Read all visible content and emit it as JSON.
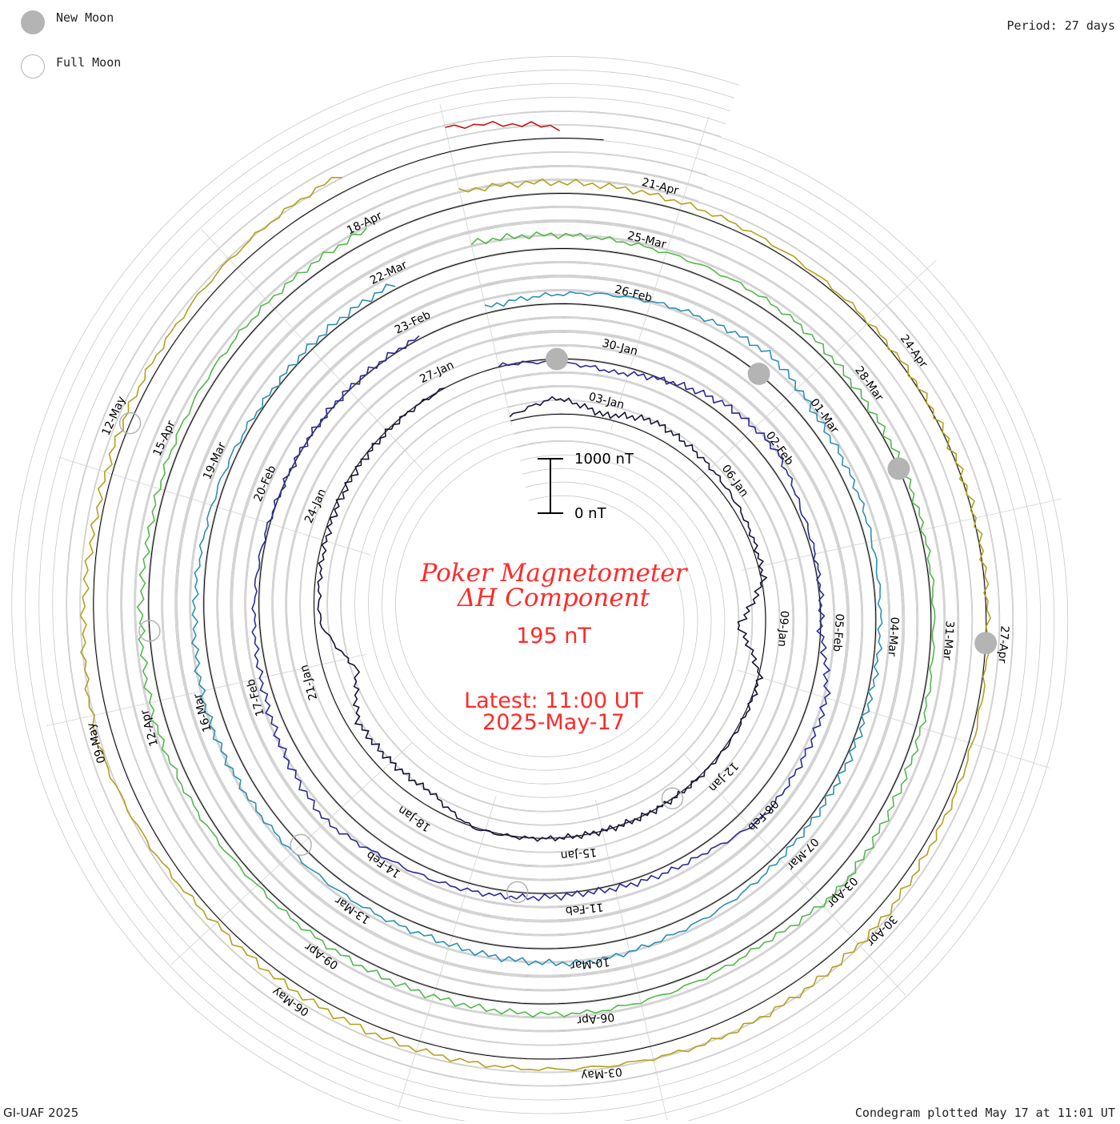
{
  "legend": {
    "new_moon": "New Moon",
    "full_moon": "Full Moon"
  },
  "header": {
    "period": "Period: 27 days"
  },
  "footer": {
    "credit": "GI-UAF 2025",
    "plotted": "Condegram plotted May 17 at 11:01 UT"
  },
  "center": {
    "title_line1": "Poker Magnetometer",
    "title_line2": "ΔH Component",
    "current_value": "195 nT",
    "latest_line1": "Latest: 11:00 UT",
    "latest_line2": "2025-May-17"
  },
  "scale_bar": {
    "top_label": "1000 nT",
    "bottom_label": "0 nT",
    "top_value": 1000,
    "bottom_value": 0
  },
  "colors": {
    "title_red": "#ff2a2a",
    "moon_gray": "#b4b4b4",
    "grid_gray": "#c8c8c8"
  },
  "chart_data": {
    "type": "line",
    "title": "Poker Magnetometer ΔH Component",
    "period_days": 27,
    "start_date": "2025-01-01",
    "latest": "2025-05-17 11:00 UT",
    "units": "nT",
    "series": [
      {
        "turn": 1,
        "color": "#14143c",
        "points": [
          {
            "date": "2025-01-01",
            "value": 80
          },
          {
            "date": "2025-01-02",
            "value": 300
          },
          {
            "date": "2025-01-03",
            "value": 60
          },
          {
            "date": "2025-01-04",
            "value": 250
          },
          {
            "date": "2025-01-06",
            "value": 120
          },
          {
            "date": "2025-01-08",
            "value": 40
          },
          {
            "date": "2025-01-09",
            "value": -500
          },
          {
            "date": "2025-01-10",
            "value": 30
          },
          {
            "date": "2025-01-12",
            "value": 20
          },
          {
            "date": "2025-01-15",
            "value": 0
          },
          {
            "date": "2025-01-17",
            "value": 15
          },
          {
            "date": "2025-01-18",
            "value": -250
          },
          {
            "date": "2025-01-20",
            "value": -200
          },
          {
            "date": "2025-01-21",
            "value": -600
          },
          {
            "date": "2025-01-22",
            "value": -100
          },
          {
            "date": "2025-01-24",
            "value": -50
          },
          {
            "date": "2025-01-27",
            "value": 0
          }
        ]
      },
      {
        "turn": 2,
        "color": "#2a2a9a",
        "points": [
          {
            "date": "2025-01-28",
            "value": 20
          },
          {
            "date": "2025-01-30",
            "value": -150
          },
          {
            "date": "2025-02-01",
            "value": 200
          },
          {
            "date": "2025-02-02",
            "value": 250
          },
          {
            "date": "2025-02-03",
            "value": 80
          },
          {
            "date": "2025-02-05",
            "value": 0
          },
          {
            "date": "2025-02-06",
            "value": 300
          },
          {
            "date": "2025-02-08",
            "value": 350
          },
          {
            "date": "2025-02-09",
            "value": 150
          },
          {
            "date": "2025-02-11",
            "value": 40
          },
          {
            "date": "2025-02-14",
            "value": 200
          },
          {
            "date": "2025-02-15",
            "value": 380
          },
          {
            "date": "2025-02-17",
            "value": 150
          },
          {
            "date": "2025-02-20",
            "value": 0
          },
          {
            "date": "2025-02-23",
            "value": 30
          }
        ]
      },
      {
        "turn": 3,
        "color": "#2d8fb4",
        "points": [
          {
            "date": "2025-02-24",
            "value": 100
          },
          {
            "date": "2025-02-26",
            "value": 250
          },
          {
            "date": "2025-02-28",
            "value": 400
          },
          {
            "date": "2025-03-01",
            "value": 200
          },
          {
            "date": "2025-03-03",
            "value": 100
          },
          {
            "date": "2025-03-05",
            "value": 60
          },
          {
            "date": "2025-03-07",
            "value": 80
          },
          {
            "date": "2025-03-09",
            "value": 200
          },
          {
            "date": "2025-03-10",
            "value": 300
          },
          {
            "date": "2025-03-12",
            "value": 150
          },
          {
            "date": "2025-03-14",
            "value": 200
          },
          {
            "date": "2025-03-16",
            "value": 250
          },
          {
            "date": "2025-03-18",
            "value": 120
          },
          {
            "date": "2025-03-20",
            "value": 50
          },
          {
            "date": "2025-03-22",
            "value": 100
          }
        ]
      },
      {
        "turn": 4,
        "color": "#52b84c",
        "points": [
          {
            "date": "2025-03-23",
            "value": 300
          },
          {
            "date": "2025-03-25",
            "value": 200
          },
          {
            "date": "2025-03-27",
            "value": 150
          },
          {
            "date": "2025-03-28",
            "value": 80
          },
          {
            "date": "2025-03-31",
            "value": 50
          },
          {
            "date": "2025-04-02",
            "value": 150
          },
          {
            "date": "2025-04-03",
            "value": 250
          },
          {
            "date": "2025-04-04",
            "value": 100
          },
          {
            "date": "2025-04-06",
            "value": 200
          },
          {
            "date": "2025-04-08",
            "value": 150
          },
          {
            "date": "2025-04-10",
            "value": 80
          },
          {
            "date": "2025-04-12",
            "value": 200
          },
          {
            "date": "2025-04-14",
            "value": 100
          },
          {
            "date": "2025-04-16",
            "value": 150
          },
          {
            "date": "2025-04-18",
            "value": 200
          }
        ]
      },
      {
        "turn": 5,
        "color": "#b4a01e",
        "points": [
          {
            "date": "2025-04-19",
            "value": 250
          },
          {
            "date": "2025-04-21",
            "value": 150
          },
          {
            "date": "2025-04-23",
            "value": 50
          },
          {
            "date": "2025-04-25",
            "value": 20
          },
          {
            "date": "2025-04-27",
            "value": 30
          },
          {
            "date": "2025-04-29",
            "value": 100
          },
          {
            "date": "2025-04-30",
            "value": 200
          },
          {
            "date": "2025-05-02",
            "value": 250
          },
          {
            "date": "2025-05-03",
            "value": 200
          },
          {
            "date": "2025-05-05",
            "value": 150
          },
          {
            "date": "2025-05-07",
            "value": 100
          },
          {
            "date": "2025-05-09",
            "value": 300
          },
          {
            "date": "2025-05-11",
            "value": 100
          },
          {
            "date": "2025-05-13",
            "value": 150
          },
          {
            "date": "2025-05-15",
            "value": 300
          }
        ]
      },
      {
        "turn": 6,
        "color": "#c81414",
        "points": [
          {
            "date": "2025-05-16",
            "value": 450
          },
          {
            "date": "2025-05-17",
            "value": 195
          }
        ]
      }
    ],
    "day_labels": [
      {
        "text": "03-Jan",
        "date": "2025-01-03"
      },
      {
        "text": "06-Jan",
        "date": "2025-01-06"
      },
      {
        "text": "09-Jan",
        "date": "2025-01-09"
      },
      {
        "text": "12-Jan",
        "date": "2025-01-12"
      },
      {
        "text": "15-Jan",
        "date": "2025-01-15"
      },
      {
        "text": "18-Jan",
        "date": "2025-01-18"
      },
      {
        "text": "21-Jan",
        "date": "2025-01-21"
      },
      {
        "text": "24-Jan",
        "date": "2025-01-24"
      },
      {
        "text": "27-Jan",
        "date": "2025-01-27"
      },
      {
        "text": "30-Jan",
        "date": "2025-01-30"
      },
      {
        "text": "02-Feb",
        "date": "2025-02-02"
      },
      {
        "text": "05-Feb",
        "date": "2025-02-05"
      },
      {
        "text": "08-Feb",
        "date": "2025-02-08"
      },
      {
        "text": "11-Feb",
        "date": "2025-02-11"
      },
      {
        "text": "14-Feb",
        "date": "2025-02-14"
      },
      {
        "text": "17-Feb",
        "date": "2025-02-17"
      },
      {
        "text": "20-Feb",
        "date": "2025-02-20"
      },
      {
        "text": "23-Feb",
        "date": "2025-02-23"
      },
      {
        "text": "26-Feb",
        "date": "2025-02-26"
      },
      {
        "text": "01-Mar",
        "date": "2025-03-01"
      },
      {
        "text": "04-Mar",
        "date": "2025-03-04"
      },
      {
        "text": "07-Mar",
        "date": "2025-03-07"
      },
      {
        "text": "10-Mar",
        "date": "2025-03-10"
      },
      {
        "text": "13-Mar",
        "date": "2025-03-13"
      },
      {
        "text": "16-Mar",
        "date": "2025-03-16"
      },
      {
        "text": "19-Mar",
        "date": "2025-03-19"
      },
      {
        "text": "22-Mar",
        "date": "2025-03-22"
      },
      {
        "text": "25-Mar",
        "date": "2025-03-25"
      },
      {
        "text": "28-Mar",
        "date": "2025-03-28"
      },
      {
        "text": "31-Mar",
        "date": "2025-03-31"
      },
      {
        "text": "03-Apr",
        "date": "2025-04-03"
      },
      {
        "text": "06-Apr",
        "date": "2025-04-06"
      },
      {
        "text": "09-Apr",
        "date": "2025-04-09"
      },
      {
        "text": "12-Apr",
        "date": "2025-04-12"
      },
      {
        "text": "15-Apr",
        "date": "2025-04-15"
      },
      {
        "text": "18-Apr",
        "date": "2025-04-18"
      },
      {
        "text": "21-Apr",
        "date": "2025-04-21"
      },
      {
        "text": "24-Apr",
        "date": "2025-04-24"
      },
      {
        "text": "27-Apr",
        "date": "2025-04-27"
      },
      {
        "text": "30-Apr",
        "date": "2025-04-30"
      },
      {
        "text": "03-May",
        "date": "2025-05-03"
      },
      {
        "text": "06-May",
        "date": "2025-05-06"
      },
      {
        "text": "09-May",
        "date": "2025-05-09"
      },
      {
        "text": "12-May",
        "date": "2025-05-12"
      }
    ],
    "moon_phases": [
      {
        "phase": "new",
        "date": "2025-01-29"
      },
      {
        "phase": "new",
        "date": "2025-02-28"
      },
      {
        "phase": "new",
        "date": "2025-03-29"
      },
      {
        "phase": "new",
        "date": "2025-04-27"
      },
      {
        "phase": "full",
        "date": "2025-01-13"
      },
      {
        "phase": "full",
        "date": "2025-02-12"
      },
      {
        "phase": "full",
        "date": "2025-03-14"
      },
      {
        "phase": "full",
        "date": "2025-04-13"
      },
      {
        "phase": "full",
        "date": "2025-05-12"
      }
    ]
  }
}
